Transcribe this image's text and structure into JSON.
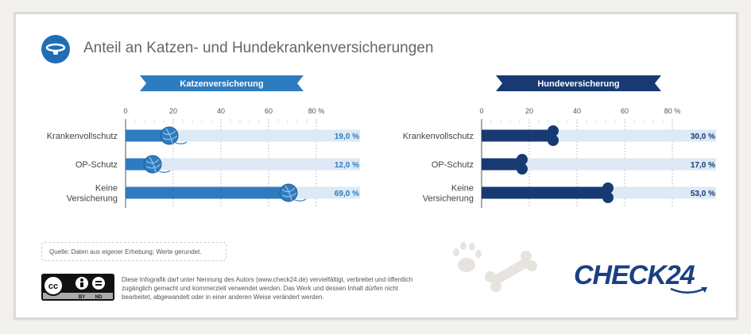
{
  "title": "Anteil an Katzen- und Hundekrankenversicherungen",
  "chart_data": [
    {
      "type": "bar",
      "orientation": "horizontal",
      "title": "Katzenversicherung",
      "categories": [
        "Krankenvollschutz",
        "OP-Schutz",
        "Keine Versicherung"
      ],
      "values": [
        19.0,
        12.0,
        69.0
      ],
      "value_labels": [
        "19,0 %",
        "12,0 %",
        "69,0 %"
      ],
      "xlim": [
        0,
        80
      ],
      "ticks": [
        "0",
        "20",
        "40",
        "60",
        "80 %"
      ],
      "bar_end_icon": "yarn-ball-icon",
      "color": "#2e7cc0",
      "grid": true
    },
    {
      "type": "bar",
      "orientation": "horizontal",
      "title": "Hundeversicherung",
      "categories": [
        "Krankenvollschutz",
        "OP-Schutz",
        "Keine Versicherung"
      ],
      "values": [
        30.0,
        17.0,
        53.0
      ],
      "value_labels": [
        "30,0 %",
        "17,0 %",
        "53,0 %"
      ],
      "xlim": [
        0,
        80
      ],
      "ticks": [
        "0",
        "20",
        "40",
        "60",
        "80 %"
      ],
      "bar_end_icon": "bone-icon",
      "color": "#173a73",
      "grid": true
    }
  ],
  "source": "Quelle: Daten aus eigener Erhebung; Werte gerundet.",
  "license_text": "Diese Infografik darf unter Nennung des Autors (www.check24.de) vervielfältigt, verbreitet und öffentlich zugänglich gemacht und kommerziell verwendet werden. Das Werk und dessen Inhalt dürfen nicht bearbeitet, abgewandelt oder in einer anderen Weise verändert werden.",
  "license_badge": {
    "cc": "cc",
    "by": "BY",
    "nd": "ND"
  },
  "brand": "CHECK24",
  "colors": {
    "cat": "#2e7cc0",
    "dog": "#173a73",
    "track": "#d9e7f5",
    "value_cat": "#2e7cc0",
    "value_dog": "#173a73"
  }
}
